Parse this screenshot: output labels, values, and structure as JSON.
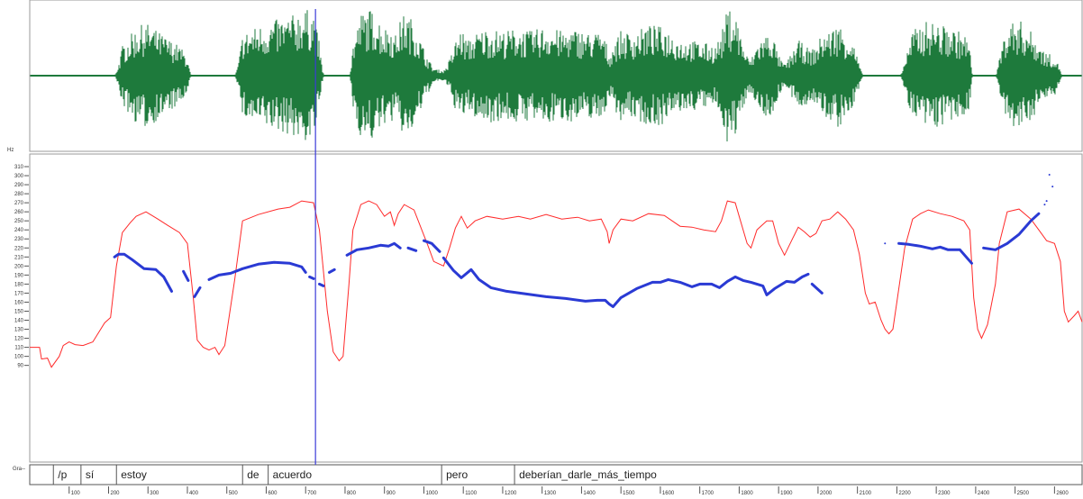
{
  "chart_data": {
    "type": "line",
    "y_axis_unit": "Hz",
    "ylim": [
      80,
      315
    ],
    "y_ticks": [
      90,
      100,
      110,
      120,
      130,
      140,
      150,
      160,
      170,
      180,
      190,
      200,
      210,
      220,
      230,
      240,
      250,
      260,
      270,
      280,
      290,
      300,
      310
    ],
    "y_tick_labels": [
      "90",
      "100",
      "110",
      "120",
      "130",
      "140",
      "150",
      "160",
      "170",
      "180",
      "190",
      "200",
      "210",
      "220",
      "230",
      "240",
      "250",
      "260",
      "270",
      "280",
      "290",
      "300",
      "310"
    ],
    "xlim": [
      0,
      2670
    ],
    "x_ticks": [
      100,
      200,
      300,
      400,
      500,
      600,
      700,
      800,
      900,
      1000,
      1100,
      1200,
      1300,
      1400,
      1500,
      1600,
      1700,
      1800,
      1900,
      2000,
      2100,
      2200,
      2300,
      2400,
      2500,
      2600
    ],
    "x_tick_labels": [
      "100",
      "200",
      "300",
      "400",
      "500",
      "600",
      "700",
      "800",
      "900",
      "1000",
      "1100",
      "1200",
      "1300",
      "1400",
      "1500",
      "1600",
      "1700",
      "1800",
      "1900",
      "2000",
      "2100",
      "2200",
      "2300",
      "2400",
      "2500",
      "2600"
    ],
    "cursor_x": 725,
    "tier_label": "Gra--",
    "waveform_color": "#1e7a3c",
    "intensity_color": "#ff2a2a",
    "pitch_color": "#2a3ad4",
    "cursor_color": "#3a3ad8",
    "grid": false,
    "annotations": [
      {
        "start": 60,
        "end": 130,
        "text": "/p"
      },
      {
        "start": 130,
        "end": 220,
        "text": "sí"
      },
      {
        "start": 220,
        "end": 540,
        "text": "estoy"
      },
      {
        "start": 540,
        "end": 605,
        "text": "de"
      },
      {
        "start": 605,
        "end": 1045,
        "text": "acuerdo"
      },
      {
        "start": 1045,
        "end": 1230,
        "text": "pero"
      },
      {
        "start": 1230,
        "end": 2670,
        "text": "deberían_darle_más_tiempo"
      }
    ],
    "series": [
      {
        "kind": "intensity",
        "points": [
          [
            0,
            110
          ],
          [
            25,
            110
          ],
          [
            30,
            97
          ],
          [
            45,
            98
          ],
          [
            55,
            88
          ],
          [
            75,
            100
          ],
          [
            85,
            112
          ],
          [
            100,
            116
          ],
          [
            115,
            113
          ],
          [
            135,
            112
          ],
          [
            160,
            116
          ],
          [
            190,
            137
          ],
          [
            205,
            143
          ],
          [
            220,
            200
          ],
          [
            235,
            237
          ],
          [
            255,
            248
          ],
          [
            270,
            255
          ],
          [
            295,
            260
          ],
          [
            325,
            252
          ],
          [
            350,
            245
          ],
          [
            380,
            237
          ],
          [
            400,
            225
          ],
          [
            415,
            165
          ],
          [
            425,
            118
          ],
          [
            440,
            110
          ],
          [
            455,
            107
          ],
          [
            470,
            110
          ],
          [
            480,
            102
          ],
          [
            495,
            112
          ],
          [
            520,
            185
          ],
          [
            540,
            250
          ],
          [
            580,
            257
          ],
          [
            630,
            263
          ],
          [
            660,
            265
          ],
          [
            690,
            272
          ],
          [
            720,
            270
          ],
          [
            735,
            240
          ],
          [
            755,
            150
          ],
          [
            770,
            105
          ],
          [
            785,
            95
          ],
          [
            795,
            100
          ],
          [
            810,
            180
          ],
          [
            820,
            240
          ],
          [
            840,
            268
          ],
          [
            860,
            272
          ],
          [
            880,
            268
          ],
          [
            900,
            255
          ],
          [
            915,
            260
          ],
          [
            925,
            245
          ],
          [
            935,
            258
          ],
          [
            950,
            268
          ],
          [
            975,
            262
          ],
          [
            1010,
            223
          ],
          [
            1025,
            205
          ],
          [
            1050,
            200
          ],
          [
            1065,
            220
          ],
          [
            1080,
            242
          ],
          [
            1095,
            255
          ],
          [
            1110,
            242
          ],
          [
            1130,
            250
          ],
          [
            1160,
            255
          ],
          [
            1200,
            252
          ],
          [
            1240,
            255
          ],
          [
            1270,
            252
          ],
          [
            1310,
            257
          ],
          [
            1350,
            252
          ],
          [
            1390,
            254
          ],
          [
            1420,
            250
          ],
          [
            1450,
            252
          ],
          [
            1465,
            238
          ],
          [
            1470,
            225
          ],
          [
            1480,
            240
          ],
          [
            1500,
            252
          ],
          [
            1530,
            250
          ],
          [
            1570,
            258
          ],
          [
            1610,
            256
          ],
          [
            1650,
            244
          ],
          [
            1680,
            243
          ],
          [
            1710,
            240
          ],
          [
            1740,
            238
          ],
          [
            1755,
            250
          ],
          [
            1770,
            272
          ],
          [
            1790,
            270
          ],
          [
            1800,
            255
          ],
          [
            1820,
            225
          ],
          [
            1830,
            220
          ],
          [
            1845,
            240
          ],
          [
            1870,
            250
          ],
          [
            1885,
            250
          ],
          [
            1900,
            225
          ],
          [
            1915,
            212
          ],
          [
            1935,
            230
          ],
          [
            1950,
            243
          ],
          [
            1965,
            238
          ],
          [
            1980,
            232
          ],
          [
            1995,
            236
          ],
          [
            2010,
            250
          ],
          [
            2030,
            252
          ],
          [
            2050,
            260
          ],
          [
            2070,
            252
          ],
          [
            2090,
            240
          ],
          [
            2105,
            213
          ],
          [
            2120,
            170
          ],
          [
            2130,
            158
          ],
          [
            2145,
            160
          ],
          [
            2160,
            140
          ],
          [
            2170,
            130
          ],
          [
            2180,
            125
          ],
          [
            2190,
            130
          ],
          [
            2200,
            160
          ],
          [
            2220,
            220
          ],
          [
            2240,
            252
          ],
          [
            2260,
            258
          ],
          [
            2280,
            262
          ],
          [
            2310,
            258
          ],
          [
            2340,
            255
          ],
          [
            2370,
            250
          ],
          [
            2385,
            240
          ],
          [
            2395,
            165
          ],
          [
            2405,
            130
          ],
          [
            2415,
            120
          ],
          [
            2430,
            135
          ],
          [
            2450,
            180
          ],
          [
            2460,
            225
          ],
          [
            2480,
            260
          ],
          [
            2510,
            263
          ],
          [
            2540,
            252
          ],
          [
            2560,
            240
          ],
          [
            2580,
            228
          ],
          [
            2600,
            225
          ],
          [
            2615,
            205
          ],
          [
            2625,
            150
          ],
          [
            2635,
            138
          ],
          [
            2650,
            145
          ],
          [
            2660,
            150
          ],
          [
            2670,
            138
          ]
        ]
      },
      {
        "kind": "pitch",
        "segments": [
          [
            [
              215,
              210
            ],
            [
              225,
              213
            ],
            [
              240,
              213
            ],
            [
              260,
              207
            ],
            [
              290,
              197
            ],
            [
              320,
              196
            ],
            [
              340,
              188
            ],
            [
              360,
              172
            ]
          ],
          [
            [
              390,
              194
            ],
            [
              402,
              184
            ]
          ],
          [
            [
              418,
              166
            ],
            [
              432,
              176
            ]
          ],
          [
            [
              455,
              185
            ],
            [
              480,
              190
            ],
            [
              510,
              192
            ],
            [
              540,
              197
            ],
            [
              580,
              202
            ],
            [
              620,
              204
            ],
            [
              660,
              203
            ],
            [
              690,
              199
            ],
            [
              700,
              193
            ]
          ],
          [
            [
              710,
              188
            ],
            [
              720,
              186
            ]
          ],
          [
            [
              735,
              180
            ],
            [
              745,
              178
            ]
          ],
          [
            [
              760,
              193
            ],
            [
              773,
              196
            ]
          ],
          [
            [
              805,
              212
            ],
            [
              830,
              218
            ],
            [
              860,
              220
            ],
            [
              890,
              223
            ],
            [
              910,
              222
            ],
            [
              925,
              225
            ],
            [
              940,
              220
            ]
          ],
          [
            [
              960,
              220
            ],
            [
              980,
              217
            ]
          ],
          [
            [
              1000,
              228
            ],
            [
              1020,
              225
            ],
            [
              1040,
              216
            ]
          ],
          [
            [
              1050,
              209
            ],
            [
              1075,
              195
            ],
            [
              1095,
              187
            ],
            [
              1120,
              196
            ],
            [
              1140,
              185
            ],
            [
              1170,
              176
            ],
            [
              1210,
              172
            ],
            [
              1260,
              169
            ],
            [
              1310,
              166
            ],
            [
              1360,
              164
            ],
            [
              1410,
              161
            ],
            [
              1440,
              162
            ],
            [
              1460,
              162
            ],
            [
              1470,
              158
            ],
            [
              1480,
              155
            ],
            [
              1500,
              165
            ],
            [
              1540,
              175
            ],
            [
              1580,
              182
            ],
            [
              1600,
              182
            ],
            [
              1620,
              185
            ],
            [
              1650,
              182
            ],
            [
              1680,
              177
            ],
            [
              1700,
              180
            ],
            [
              1730,
              180
            ],
            [
              1750,
              176
            ],
            [
              1770,
              183
            ],
            [
              1790,
              188
            ],
            [
              1810,
              184
            ],
            [
              1830,
              182
            ],
            [
              1860,
              178
            ],
            [
              1870,
              168
            ],
            [
              1890,
              175
            ],
            [
              1920,
              183
            ],
            [
              1940,
              182
            ],
            [
              1960,
              188
            ],
            [
              1975,
              191
            ]
          ],
          [
            [
              1985,
              180
            ],
            [
              2010,
              170
            ]
          ],
          [
            [
              2205,
              225
            ],
            [
              2230,
              224
            ],
            [
              2260,
              222
            ],
            [
              2290,
              219
            ],
            [
              2310,
              221
            ],
            [
              2330,
              218
            ],
            [
              2360,
              218
            ],
            [
              2390,
              203
            ]
          ],
          [
            [
              2420,
              220
            ],
            [
              2450,
              218
            ],
            [
              2480,
              225
            ],
            [
              2510,
              235
            ],
            [
              2540,
              250
            ],
            [
              2560,
              258
            ]
          ]
        ],
        "scatter": [
          [
            2587,
            301
          ],
          [
            2595,
            288
          ],
          [
            2580,
            272
          ],
          [
            2575,
            268
          ],
          [
            2170,
            225
          ]
        ]
      }
    ]
  }
}
